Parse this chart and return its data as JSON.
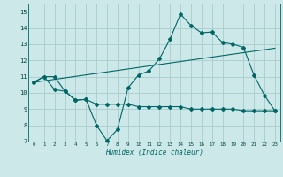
{
  "title": "",
  "xlabel": "Humidex (Indice chaleur)",
  "ylabel": "",
  "bg_color": "#cde8e8",
  "grid_color": "#aacccc",
  "line_color": "#006666",
  "xlim": [
    -0.5,
    23.5
  ],
  "ylim": [
    7,
    15.5
  ],
  "xticks": [
    0,
    1,
    2,
    3,
    4,
    5,
    6,
    7,
    8,
    9,
    10,
    11,
    12,
    13,
    14,
    15,
    16,
    17,
    18,
    19,
    20,
    21,
    22,
    23
  ],
  "yticks": [
    7,
    8,
    9,
    10,
    11,
    12,
    13,
    14,
    15
  ],
  "line1_x": [
    0,
    1,
    2,
    3,
    4,
    5,
    6,
    7,
    8,
    9,
    10,
    11,
    12,
    13,
    14,
    15,
    16,
    17,
    18,
    19,
    20,
    21,
    22,
    23
  ],
  "line1_y": [
    10.65,
    11.0,
    11.0,
    10.1,
    9.55,
    9.6,
    8.0,
    7.05,
    7.75,
    10.3,
    11.1,
    11.35,
    12.1,
    13.3,
    14.85,
    14.15,
    13.7,
    13.75,
    13.1,
    13.0,
    12.8,
    11.1,
    9.85,
    8.9
  ],
  "line2_x": [
    0,
    1,
    2,
    3,
    4,
    5,
    6,
    7,
    8,
    9,
    10,
    11,
    12,
    13,
    14,
    15,
    16,
    17,
    18,
    19,
    20,
    21,
    22,
    23
  ],
  "line2_y": [
    10.65,
    11.0,
    10.2,
    10.1,
    9.55,
    9.6,
    9.3,
    9.3,
    9.3,
    9.3,
    9.15,
    9.15,
    9.15,
    9.15,
    9.15,
    9.0,
    9.0,
    9.0,
    9.0,
    9.0,
    8.9,
    8.9,
    8.9,
    8.9
  ],
  "line3_x": [
    0,
    23
  ],
  "line3_y": [
    10.65,
    12.75
  ]
}
